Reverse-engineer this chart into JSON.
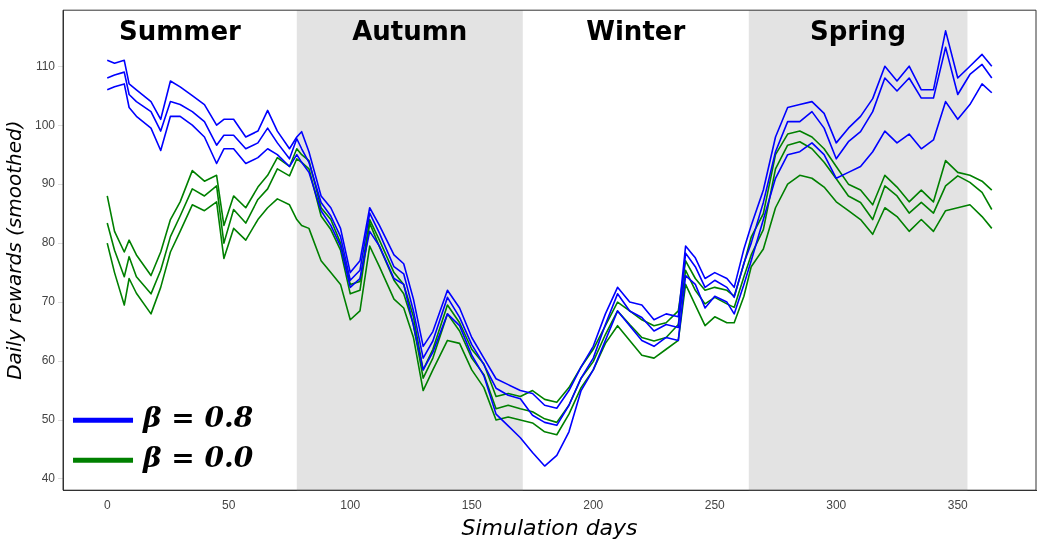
{
  "chart_data": {
    "type": "line",
    "xlabel": "Simulation days",
    "ylabel": "Daily rewards (smoothed)",
    "x": [
      0,
      3,
      7,
      9,
      12,
      18,
      22,
      26,
      30,
      35,
      40,
      45,
      48,
      52,
      57,
      62,
      66,
      70,
      75,
      78,
      80,
      83,
      88,
      92,
      96,
      100,
      104,
      108,
      112,
      118,
      122,
      126,
      130,
      134,
      140,
      145,
      150,
      155,
      160,
      165,
      170,
      175,
      180,
      185,
      190,
      195,
      200,
      205,
      210,
      215,
      220,
      225,
      230,
      235,
      238,
      242,
      246,
      250,
      255,
      258,
      262,
      265,
      270,
      275,
      280,
      285,
      290,
      295,
      300,
      305,
      310,
      315,
      320,
      325,
      330,
      335,
      340,
      345,
      350,
      355,
      360,
      364
    ],
    "series": [
      {
        "name": "β = 0.8",
        "color": "#0000ff",
        "values": [
          108,
          108.5,
          109,
          105.2,
          104,
          102.3,
          99,
          104,
          103.5,
          102.3,
          100.6,
          96.6,
          98.3,
          98.3,
          96,
          97,
          99.5,
          97,
          94.3,
          97.7,
          96,
          93.7,
          86.9,
          84.6,
          81.1,
          73.7,
          75.4,
          85.1,
          81.7,
          76,
          74.8,
          68.5,
          60.5,
          63.4,
          70.8,
          67.4,
          62.8,
          59.4,
          55.4,
          54.2,
          53.6,
          50.8,
          49.6,
          49.1,
          52.5,
          57.1,
          60.5,
          66.2,
          71.4,
          68.5,
          67.4,
          65.1,
          66.2,
          65.7,
          78.3,
          76,
          72.5,
          73.7,
          72.5,
          70.8,
          76.6,
          80,
          86.9,
          95.5,
          100.6,
          100.6,
          102.3,
          99.5,
          94.3,
          97.2,
          98.9,
          102.3,
          108,
          105.8,
          108,
          104.6,
          104.6,
          113.2,
          105.2,
          108.6,
          110.3,
          108
        ]
      },
      {
        "color": "#0000ff",
        "values": [
          106,
          106.5,
          107,
          103,
          101.5,
          99.5,
          95.7,
          101.5,
          101.5,
          100,
          98,
          93.5,
          96,
          96,
          93.5,
          94.5,
          96,
          95,
          93,
          95,
          93.7,
          92,
          85.5,
          83,
          79.5,
          72.5,
          74,
          82,
          79.5,
          74,
          73,
          66,
          58.5,
          61.5,
          68,
          66,
          61,
          57.5,
          51,
          49,
          47,
          44.5,
          42.2,
          44,
          48,
          55,
          58.5,
          63.5,
          68.5,
          66,
          63.5,
          62.5,
          64,
          63.5,
          74.5,
          73,
          69,
          71,
          70,
          68,
          73,
          77,
          84,
          91,
          95,
          95.5,
          97,
          95,
          91,
          92,
          93,
          95.5,
          99,
          97,
          98.5,
          96,
          97.5,
          104,
          101,
          103.5,
          107,
          105.5
        ]
      },
      {
        "color": "#0000ff",
        "values": [
          111,
          110.5,
          111,
          107,
          106,
          104,
          101,
          107.5,
          106.5,
          105,
          103.5,
          100,
          101,
          101,
          98,
          99,
          102.5,
          99,
          96,
          98,
          98.9,
          95.5,
          88,
          86,
          82.5,
          75,
          77,
          86,
          83,
          78,
          76.5,
          70.5,
          62.5,
          65,
          72,
          69,
          64,
          60.5,
          57,
          56,
          55,
          54.5,
          52.5,
          52,
          55,
          59,
          62.5,
          68,
          72.5,
          70,
          69.5,
          67,
          68,
          67.5,
          79.5,
          77.5,
          74,
          75,
          74,
          72.5,
          79,
          83,
          89,
          98,
          103,
          103.5,
          104,
          102,
          97,
          99.5,
          101.5,
          104.5,
          110,
          107.5,
          110,
          106,
          106,
          116,
          108,
          110,
          112,
          110
        ]
      },
      {
        "name": "β = 0.0",
        "color": "#008000",
        "values": [
          83.4,
          78.8,
          74.3,
          77.7,
          74.3,
          71.4,
          75.4,
          81.1,
          84.6,
          89.2,
          88,
          89.7,
          80,
          85.7,
          83.4,
          87.4,
          89.2,
          92.6,
          91.4,
          94.3,
          93.7,
          92.6,
          84.6,
          82.3,
          78.8,
          71.4,
          72,
          83.4,
          79.4,
          73.7,
          71.4,
          66.2,
          57.1,
          60.5,
          68,
          65.1,
          60.5,
          57.7,
          51.9,
          52.5,
          51.9,
          51.4,
          50.2,
          49.6,
          52.5,
          57.1,
          59.9,
          64.5,
          68.5,
          66.2,
          64,
          63.4,
          64,
          66.2,
          75.4,
          72,
          69.7,
          70.8,
          69.7,
          69.1,
          74.3,
          78,
          82.3,
          92.6,
          96.6,
          97.2,
          96,
          93.7,
          90.9,
          88,
          86.9,
          84,
          89.7,
          88,
          85.1,
          86.9,
          85.1,
          89.7,
          91.4,
          90.3,
          88.6,
          85.7
        ]
      },
      {
        "color": "#008000",
        "values": [
          80,
          75,
          69.5,
          74,
          71.5,
          68,
          72.5,
          78.5,
          82,
          86.5,
          85.5,
          87,
          77.4,
          82.5,
          80.5,
          84,
          86,
          87.5,
          86.5,
          84,
          83,
          82.5,
          77,
          75,
          73,
          67,
          68.5,
          79.5,
          76,
          70.5,
          69,
          64,
          55,
          58.5,
          63.5,
          63,
          58.5,
          55.5,
          50,
          50.5,
          50,
          49.5,
          48,
          47.5,
          51,
          55.5,
          58.5,
          63,
          66,
          63.5,
          61,
          60.5,
          62,
          63.5,
          73,
          69.5,
          66,
          67.5,
          66.5,
          66.5,
          71,
          76,
          79,
          86,
          90,
          91.5,
          91,
          89.5,
          87,
          85.5,
          84,
          81.5,
          86,
          84.5,
          82,
          84,
          82,
          85.5,
          86,
          86.5,
          84.5,
          82.5
        ]
      },
      {
        "color": "#008000",
        "values": [
          88,
          82,
          78.5,
          80.5,
          78,
          74.5,
          78.5,
          84,
          87,
          92.3,
          90.5,
          91.5,
          83,
          88,
          86,
          89.5,
          91.5,
          94.5,
          93,
          96,
          95,
          94,
          86,
          84,
          80,
          73,
          73.5,
          84,
          80.5,
          75,
          73,
          67.5,
          58.5,
          62,
          69.5,
          66.5,
          62,
          59.5,
          54,
          54.5,
          54,
          55,
          53.5,
          53,
          55.5,
          59,
          62,
          66,
          70,
          68.5,
          67,
          66,
          66.5,
          68.5,
          77,
          74,
          72,
          72.5,
          72,
          71,
          76.5,
          81,
          85,
          95,
          98.5,
          99,
          98,
          96,
          93,
          90,
          89,
          86.5,
          91.5,
          89.5,
          87,
          89,
          87,
          94,
          92,
          91.5,
          90.5,
          89
        ]
      }
    ],
    "xlim": [
      -18.2,
      382.2
    ],
    "xticks": [
      0,
      50,
      100,
      150,
      200,
      250,
      300,
      350
    ],
    "ylim": [
      38.1,
      119.5
    ],
    "yticks": [
      40,
      50,
      60,
      70,
      80,
      90,
      100,
      110
    ],
    "bands": [
      {
        "axis": "x",
        "from": 78,
        "to": 171,
        "color": "#e3e3e3",
        "label": "Autumn"
      },
      {
        "axis": "x",
        "from": 264,
        "to": 354,
        "color": "#e3e3e3",
        "label": "Spring"
      }
    ],
    "annotations": [
      "Summer",
      "Winter"
    ],
    "legend": "bottom left",
    "grid": false,
    "marker": "none",
    "line_style": "solid"
  }
}
